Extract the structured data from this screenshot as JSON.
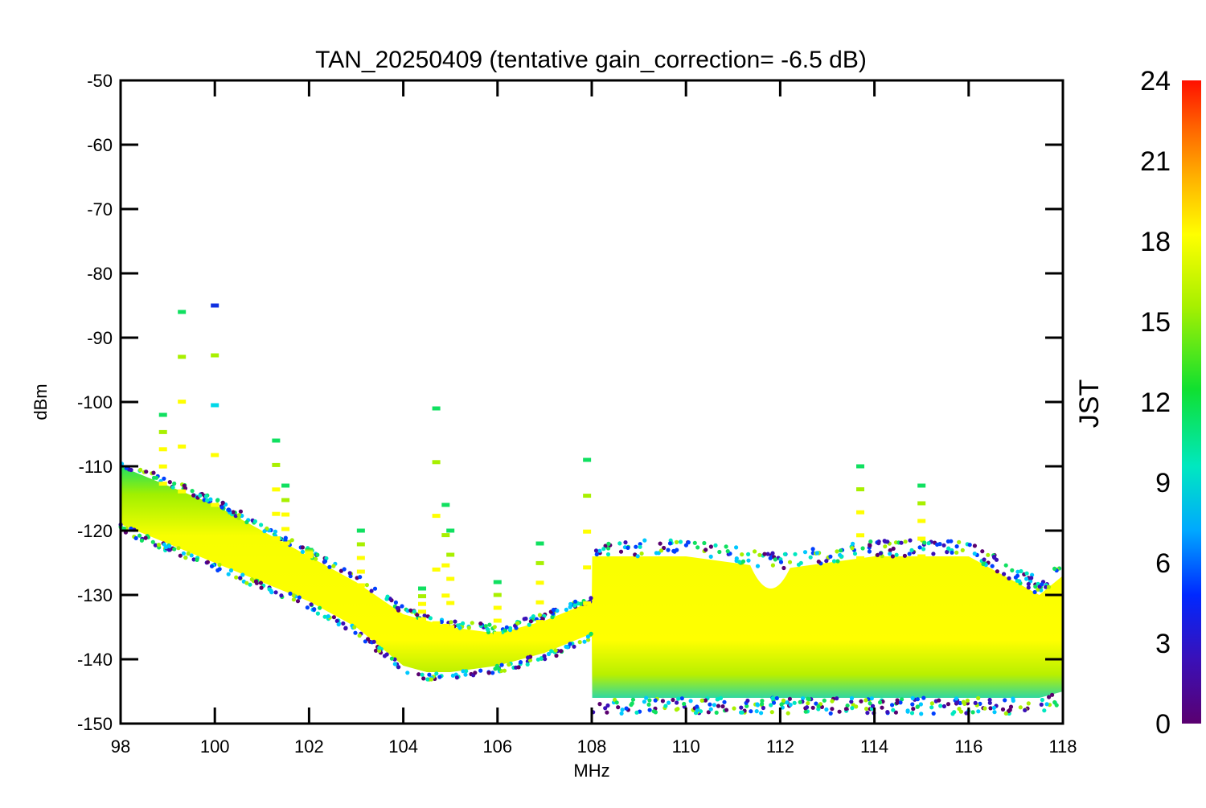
{
  "chart_data": {
    "type": "scatter",
    "title": "TAN_20250409 (tentative gain_correction= -6.5 dB)",
    "xlabel": "MHz",
    "ylabel": "dBm",
    "xlim": [
      98,
      118
    ],
    "ylim": [
      -150,
      -50
    ],
    "x_ticks": [
      "98",
      "100",
      "102",
      "104",
      "106",
      "108",
      "110",
      "112",
      "114",
      "116",
      "118"
    ],
    "y_ticks": [
      "-50",
      "-60",
      "-70",
      "-80",
      "-90",
      "-100",
      "-110",
      "-120",
      "-130",
      "-140",
      "-150"
    ],
    "grid": false,
    "colorbar": {
      "label": "JST",
      "range": [
        0,
        24
      ],
      "ticks": [
        "0",
        "3",
        "6",
        "9",
        "12",
        "15",
        "18",
        "21",
        "24"
      ],
      "colormap": "rainbow",
      "colors": [
        "#5a0070",
        "#3a10b8",
        "#0028ff",
        "#00a8ff",
        "#00e8c0",
        "#10e030",
        "#a8f000",
        "#ffff00",
        "#ffb000",
        "#ff6000",
        "#ff1000"
      ]
    },
    "series": [
      {
        "floor_band": {
          "x": [
            98,
            99,
            100,
            101,
            102,
            103,
            104,
            104.5,
            105,
            106,
            107,
            108,
            108.01,
            110,
            112,
            114,
            116,
            117.5,
            118
          ],
          "y_low": [
            -119,
            -122,
            -125,
            -128,
            -131,
            -135,
            -141,
            -142,
            -142,
            -141,
            -139,
            -136,
            -146,
            -146,
            -146,
            -146,
            -146,
            -146,
            -145
          ],
          "y_high": [
            -110,
            -113,
            -116,
            -120,
            -124,
            -128,
            -133,
            -134,
            -135,
            -136,
            -134,
            -131,
            -124,
            -124,
            -126,
            -124,
            -124,
            -130,
            -127
          ]
        },
        "notch_at_112": {
          "x": 111.8,
          "y_high": -130
        },
        "peaks": [
          {
            "x": 98.9,
            "y_top": -102
          },
          {
            "x": 99.3,
            "y_top": -86
          },
          {
            "x": 100.0,
            "y_top": -85
          },
          {
            "x": 101.3,
            "y_top": -106
          },
          {
            "x": 101.5,
            "y_top": -113
          },
          {
            "x": 102.0,
            "y_top": -123
          },
          {
            "x": 103.1,
            "y_top": -120
          },
          {
            "x": 104.4,
            "y_top": -129
          },
          {
            "x": 104.7,
            "y_top": -101
          },
          {
            "x": 104.9,
            "y_top": -116
          },
          {
            "x": 105.0,
            "y_top": -120
          },
          {
            "x": 106.0,
            "y_top": -128
          },
          {
            "x": 106.9,
            "y_top": -122
          },
          {
            "x": 107.9,
            "y_top": -109
          },
          {
            "x": 113.7,
            "y_top": -110
          },
          {
            "x": 115.0,
            "y_top": -113
          }
        ]
      }
    ]
  }
}
